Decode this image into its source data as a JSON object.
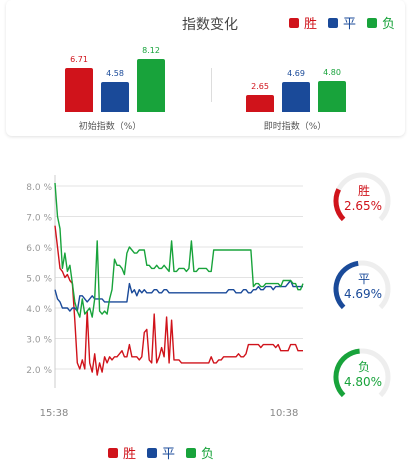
{
  "header": {
    "title": "指数变化"
  },
  "legend": [
    {
      "label": "胜",
      "color": "#d0131b"
    },
    {
      "label": "平",
      "color": "#1a4a99"
    },
    {
      "label": "负",
      "color": "#18a33b"
    }
  ],
  "colors": {
    "win": "#d0131b",
    "draw": "#1a4a99",
    "loss": "#18a33b"
  },
  "chart_data": [
    {
      "type": "bar",
      "title": "指数变化",
      "groups": [
        "初始指数（%）",
        "即时指数（%）"
      ],
      "series": [
        {
          "name": "胜",
          "values": [
            6.71,
            2.65
          ]
        },
        {
          "name": "平",
          "values": [
            4.58,
            4.69
          ]
        },
        {
          "name": "负",
          "values": [
            8.12,
            4.8
          ]
        }
      ],
      "value_labels": [
        [
          "6.71",
          "4.58",
          "8.12"
        ],
        [
          "2.65",
          "4.69",
          "4.80"
        ]
      ]
    },
    {
      "type": "line",
      "x_ticks": [
        "15:38",
        "10:38"
      ],
      "y_ticks": [
        "8.0 %",
        "7.0 %",
        "6.0 %",
        "5.0 %",
        "4.0 %",
        "3.0 %",
        "2.0 %"
      ],
      "ylim": [
        1.5,
        8.5
      ],
      "grid": true,
      "legend_position": "bottom",
      "x": [
        0,
        1,
        2,
        3,
        4,
        5,
        6,
        7,
        8,
        9,
        10,
        11,
        12,
        13,
        14,
        15,
        16,
        17,
        18,
        19,
        20,
        21,
        22,
        23,
        24,
        25,
        26,
        27,
        28,
        29,
        30,
        31,
        32,
        33,
        34,
        35,
        36,
        37,
        38,
        39,
        40,
        41,
        42,
        43,
        44,
        45,
        46,
        47,
        48,
        49,
        50,
        51,
        52,
        53,
        54,
        55,
        56,
        57,
        58,
        59,
        60,
        61,
        62,
        63,
        64,
        65,
        66,
        67,
        68,
        69,
        70,
        71,
        72,
        73,
        74,
        75,
        76,
        77,
        78,
        79,
        80,
        81,
        82,
        83,
        84,
        85,
        86,
        87,
        88,
        89,
        90,
        91,
        92,
        93,
        94,
        95,
        96,
        97,
        98,
        99,
        100
      ],
      "series": [
        {
          "name": "胜",
          "values": [
            6.7,
            6.0,
            5.3,
            5.2,
            5.0,
            5.1,
            4.9,
            4.8,
            3.6,
            2.2,
            2.0,
            2.3,
            2.0,
            3.9,
            2.2,
            1.9,
            2.5,
            1.8,
            2.2,
            1.9,
            2.4,
            2.2,
            2.4,
            2.3,
            2.4,
            2.4,
            2.5,
            2.6,
            2.4,
            2.4,
            2.8,
            2.4,
            2.4,
            2.4,
            2.3,
            2.4,
            3.2,
            3.3,
            2.3,
            2.2,
            3.8,
            2.2,
            2.4,
            2.7,
            2.4,
            3.7,
            2.2,
            3.6,
            2.3,
            2.3,
            2.3,
            2.2,
            2.2,
            2.2,
            2.2,
            2.2,
            2.2,
            2.2,
            2.2,
            2.2,
            2.2,
            2.2,
            2.2,
            2.4,
            2.2,
            2.2,
            2.3,
            2.3,
            2.4,
            2.4,
            2.4,
            2.4,
            2.4,
            2.4,
            2.5,
            2.4,
            2.4,
            2.5,
            2.8,
            2.8,
            2.8,
            2.8,
            2.8,
            2.7,
            2.8,
            2.8,
            2.8,
            2.8,
            2.8,
            2.7,
            2.8,
            2.6,
            2.6,
            2.6,
            2.6,
            2.8,
            2.8,
            2.8,
            2.6,
            2.6,
            2.6
          ]
        },
        {
          "name": "平",
          "values": [
            4.6,
            4.3,
            4.2,
            4.0,
            4.0,
            4.0,
            3.9,
            4.0,
            4.0,
            3.9,
            4.4,
            4.4,
            4.3,
            4.2,
            4.3,
            4.4,
            4.3,
            4.3,
            4.3,
            4.3,
            4.2,
            4.2,
            4.2,
            4.2,
            4.2,
            4.2,
            4.2,
            4.2,
            4.2,
            4.2,
            4.8,
            4.5,
            4.6,
            4.4,
            4.6,
            4.5,
            4.6,
            4.5,
            4.5,
            4.5,
            4.6,
            4.6,
            4.5,
            4.5,
            4.6,
            4.6,
            4.5,
            4.5,
            4.5,
            4.5,
            4.5,
            4.5,
            4.5,
            4.5,
            4.5,
            4.5,
            4.5,
            4.5,
            4.5,
            4.5,
            4.5,
            4.5,
            4.5,
            4.5,
            4.5,
            4.5,
            4.5,
            4.5,
            4.5,
            4.5,
            4.6,
            4.6,
            4.6,
            4.5,
            4.5,
            4.5,
            4.6,
            4.6,
            4.5,
            4.5,
            4.6,
            4.6,
            4.7,
            4.6,
            4.6,
            4.7,
            4.7,
            4.7,
            4.6,
            4.7,
            4.7,
            4.7,
            4.7,
            4.7,
            4.8,
            4.9,
            4.7,
            4.7,
            4.7,
            4.7,
            4.7
          ]
        },
        {
          "name": "负",
          "values": [
            8.1,
            7.0,
            6.6,
            5.3,
            5.8,
            5.2,
            5.4,
            4.8,
            4.2,
            3.9,
            3.7,
            4.3,
            3.8,
            3.9,
            4.0,
            3.7,
            4.3,
            6.2,
            3.9,
            3.8,
            3.9,
            3.8,
            4.3,
            4.6,
            5.6,
            5.4,
            5.4,
            5.3,
            5.1,
            5.8,
            6.0,
            5.9,
            5.8,
            5.8,
            5.9,
            5.9,
            5.9,
            5.4,
            5.4,
            5.3,
            5.3,
            5.4,
            5.3,
            5.3,
            5.4,
            5.3,
            5.2,
            6.2,
            5.2,
            5.2,
            5.3,
            5.3,
            5.3,
            5.2,
            5.3,
            6.2,
            5.2,
            5.2,
            5.3,
            5.3,
            5.3,
            5.3,
            5.2,
            5.2,
            5.9,
            5.9,
            5.9,
            5.9,
            5.9,
            5.9,
            5.9,
            5.9,
            5.9,
            5.9,
            5.9,
            5.9,
            5.9,
            5.9,
            5.9,
            5.9,
            4.7,
            4.8,
            4.8,
            4.7,
            4.7,
            4.8,
            4.8,
            4.8,
            4.8,
            4.8,
            4.8,
            4.7,
            4.9,
            4.9,
            4.9,
            4.9,
            4.8,
            4.8,
            4.6,
            4.6,
            4.8
          ]
        }
      ]
    }
  ],
  "bar_chart": {
    "initial_label": "初始指数（%）",
    "live_label": "即时指数（%）"
  },
  "line_chart": {
    "x_start": "15:38",
    "x_end": "10:38"
  },
  "gauges": [
    {
      "label": "胜",
      "value_text": "2.65%",
      "value": 2.65,
      "color": "#d0131b"
    },
    {
      "label": "平",
      "value_text": "4.69%",
      "value": 4.69,
      "color": "#1a4a99"
    },
    {
      "label": "负",
      "value_text": "4.80%",
      "value": 4.8,
      "color": "#18a33b"
    }
  ],
  "bottom_legend": [
    {
      "label": "胜",
      "color": "#d0131b"
    },
    {
      "label": "平",
      "color": "#1a4a99"
    },
    {
      "label": "负",
      "color": "#18a33b"
    }
  ]
}
